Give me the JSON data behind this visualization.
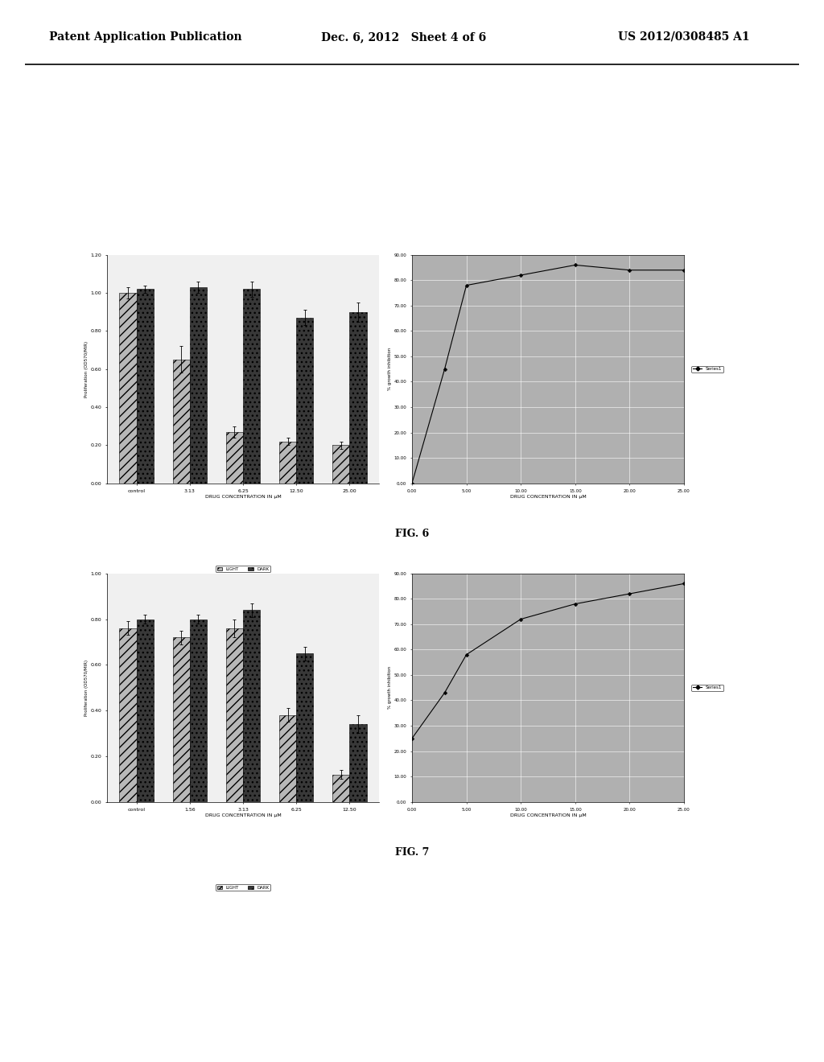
{
  "header_left": "Patent Application Publication",
  "header_mid": "Dec. 6, 2012   Sheet 4 of 6",
  "header_right": "US 2012/0308485 A1",
  "fig6_label": "FIG. 6",
  "fig7_label": "FIG. 7",
  "fig6_bar": {
    "categories": [
      "control",
      "3.13",
      "6.25",
      "12.50",
      "25.00"
    ],
    "light_values": [
      1.0,
      0.65,
      0.27,
      0.22,
      0.2
    ],
    "dark_values": [
      1.02,
      1.03,
      1.02,
      0.87,
      0.9
    ],
    "light_errors": [
      0.03,
      0.07,
      0.03,
      0.02,
      0.02
    ],
    "dark_errors": [
      0.02,
      0.03,
      0.04,
      0.04,
      0.05
    ],
    "ylabel": "Proliferation (OD570/MIR)",
    "xlabel": "DRUG CONCENTRATION IN μM",
    "ylim": [
      0.0,
      1.2
    ],
    "yticks": [
      0.0,
      0.2,
      0.4,
      0.6,
      0.8,
      1.0,
      1.2
    ],
    "legend_labels": [
      "LIGHT",
      "DARK"
    ],
    "light_color": "#b8b8b8",
    "dark_color": "#383838",
    "light_hatch": "///",
    "dark_hatch": "..."
  },
  "fig6_line": {
    "x": [
      0.0,
      3.0,
      5.0,
      10.0,
      15.0,
      20.0,
      25.0
    ],
    "y": [
      0.0,
      45.0,
      78.0,
      82.0,
      86.0,
      84.0,
      84.0
    ],
    "xlabel": "DRUG CONCENTRATION IN μM",
    "ylabel": "% growth inhibition",
    "ylim": [
      0.0,
      90.0
    ],
    "xlim": [
      0.0,
      25.0
    ],
    "yticks": [
      0.0,
      10.0,
      20.0,
      30.0,
      40.0,
      50.0,
      60.0,
      70.0,
      80.0,
      90.0
    ],
    "xticks": [
      0.0,
      5.0,
      10.0,
      15.0,
      20.0,
      25.0
    ],
    "xtick_labels": [
      "0.00",
      "5.00",
      "10.00",
      "15.00",
      "20.00",
      "25.00"
    ],
    "ytick_labels": [
      "0.00",
      "10.00",
      "20.00",
      "30.00",
      "40.00",
      "50.00",
      "60.00",
      "70.00",
      "80.00",
      "90.00"
    ],
    "series_label": "Series1",
    "color": "#303030",
    "bg_color": "#b0b0b0"
  },
  "fig7_bar": {
    "categories": [
      "control",
      "1.56",
      "3.13",
      "6.25",
      "12.50"
    ],
    "light_values": [
      0.76,
      0.72,
      0.76,
      0.38,
      0.12
    ],
    "dark_values": [
      0.8,
      0.8,
      0.84,
      0.65,
      0.34
    ],
    "light_errors": [
      0.03,
      0.03,
      0.04,
      0.03,
      0.02
    ],
    "dark_errors": [
      0.02,
      0.02,
      0.03,
      0.03,
      0.04
    ],
    "ylabel": "Proliferation (OD570/MIR)",
    "xlabel": "DRUG CONCENTRATION IN μM",
    "ylim": [
      0.0,
      1.0
    ],
    "yticks": [
      0.0,
      0.2,
      0.4,
      0.6,
      0.8,
      1.0
    ],
    "legend_labels": [
      "LIGHT",
      "DARK"
    ],
    "light_color": "#b8b8b8",
    "dark_color": "#383838",
    "light_hatch": "///",
    "dark_hatch": "..."
  },
  "fig7_line": {
    "x": [
      0.0,
      3.0,
      5.0,
      10.0,
      15.0,
      20.0,
      25.0
    ],
    "y": [
      25.0,
      43.0,
      58.0,
      72.0,
      78.0,
      82.0,
      86.0
    ],
    "xlabel": "DRUG CONCENTRATION IN μM",
    "ylabel": "% growth inhibition",
    "ylim": [
      0.0,
      90.0
    ],
    "xlim": [
      0.0,
      25.0
    ],
    "yticks": [
      0.0,
      10.0,
      20.0,
      30.0,
      40.0,
      50.0,
      60.0,
      70.0,
      80.0,
      90.0
    ],
    "xticks": [
      0.0,
      5.0,
      10.0,
      15.0,
      20.0,
      25.0
    ],
    "xtick_labels": [
      "0.00",
      "5.00",
      "10.00",
      "15.00",
      "20.00",
      "25.00"
    ],
    "ytick_labels": [
      "0.00",
      "10.00",
      "20.00",
      "30.00",
      "40.00",
      "50.00",
      "60.00",
      "70.00",
      "80.00",
      "90.00"
    ],
    "series_label": "Series1",
    "color": "#303030",
    "bg_color": "#b0b0b0"
  },
  "background_color": "#ffffff"
}
